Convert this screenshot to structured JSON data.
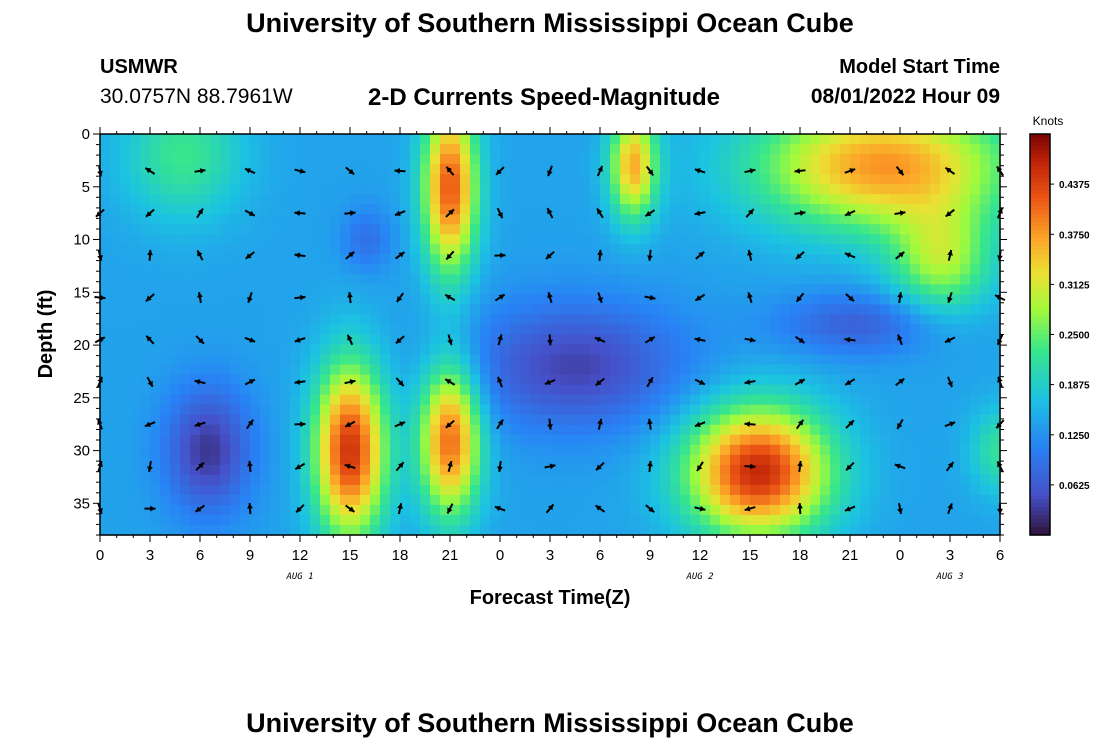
{
  "header": {
    "title": "University of Southern Mississippi Ocean Cube",
    "station_id": "USMWR",
    "station_coords": "30.0757N  88.7961W",
    "subtitle": "2-D Currents Speed-Magnitude",
    "model_label": "Model Start Time",
    "model_time": "08/01/2022 Hour 09"
  },
  "footer": {
    "title": "University of Southern Mississippi Ocean Cube"
  },
  "chart_data": {
    "type": "heatmap",
    "title": "2-D Currents Speed-Magnitude",
    "xlabel": "Forecast Time(Z)",
    "ylabel": "Depth (ft)",
    "x_range_hours": [
      0,
      54
    ],
    "ylim": [
      0,
      38
    ],
    "x_tick_labels": [
      "0",
      "3",
      "6",
      "9",
      "12",
      "15",
      "18",
      "21",
      "0",
      "3",
      "6",
      "9",
      "12",
      "15",
      "18",
      "21",
      "0",
      "3",
      "6"
    ],
    "y_ticks": [
      0,
      5,
      10,
      15,
      20,
      25,
      30,
      35
    ],
    "day_labels": [
      {
        "label": "AUG 1",
        "hour": 12
      },
      {
        "label": "AUG 2",
        "hour": 36
      },
      {
        "label": "AUG 3",
        "hour": 51
      }
    ],
    "colorbar": {
      "title": "Knots",
      "min": 0.0,
      "max": 0.5,
      "ticks": [
        "0.0625",
        "0.1250",
        "0.1875",
        "0.2500",
        "0.3125",
        "0.3750",
        "0.4375"
      ]
    },
    "speed_blobs": [
      {
        "x": 5.0,
        "y": 2,
        "sx": 3.5,
        "sy": 6,
        "v": 0.09
      },
      {
        "x": 21.0,
        "y": 5,
        "sx": 1.6,
        "sy": 8,
        "v": 0.28
      },
      {
        "x": 32.0,
        "y": 3,
        "sx": 1.4,
        "sy": 5,
        "v": 0.22
      },
      {
        "x": 47.0,
        "y": 3,
        "sx": 7.5,
        "sy": 6,
        "v": 0.24
      },
      {
        "x": 50.5,
        "y": 12,
        "sx": 3.0,
        "sy": 5,
        "v": 0.14
      },
      {
        "x": 15.0,
        "y": 30,
        "sx": 2.1,
        "sy": 8,
        "v": 0.31
      },
      {
        "x": 21.0,
        "y": 29,
        "sx": 1.8,
        "sy": 7,
        "v": 0.27
      },
      {
        "x": 39.5,
        "y": 32,
        "sx": 4.2,
        "sy": 6,
        "v": 0.32
      },
      {
        "x": 54.0,
        "y": 30,
        "sx": 1.8,
        "sy": 4,
        "v": 0.08
      },
      {
        "x": 6.5,
        "y": 30,
        "sx": 2.6,
        "sy": 6,
        "v": -0.11
      },
      {
        "x": 28.5,
        "y": 22,
        "sx": 6.5,
        "sy": 6,
        "v": -0.1
      },
      {
        "x": 45.5,
        "y": 18,
        "sx": 4.8,
        "sy": 3,
        "v": -0.07
      },
      {
        "x": 16.0,
        "y": 10,
        "sx": 1.5,
        "sy": 3,
        "v": -0.05
      }
    ],
    "vector_columns_hours": [
      0,
      3,
      6,
      9,
      12,
      15,
      18,
      21,
      24,
      27,
      30,
      33,
      36,
      39,
      42,
      45,
      48,
      51,
      54
    ],
    "vector_rows_ft": [
      3.5,
      7.5,
      11.5,
      15.5,
      19.5,
      23.5,
      27.5,
      31.5,
      35.5
    ]
  }
}
